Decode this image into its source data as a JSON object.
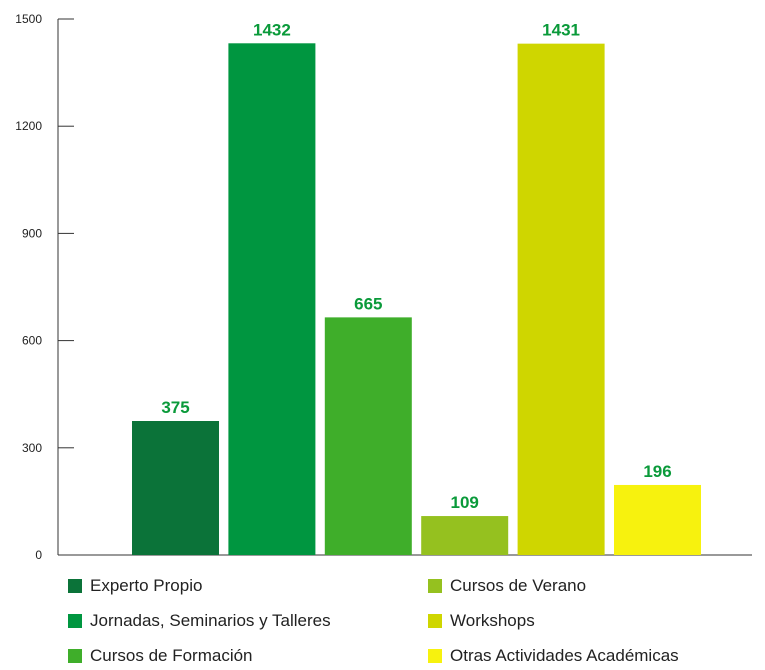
{
  "chart_data": {
    "type": "bar",
    "categories": [
      "Experto Propio",
      "Jornadas, Seminarios y Talleres",
      "Cursos de Formación",
      "Cursos de Verano",
      "Workshops",
      "Otras Actividades Académicas"
    ],
    "values": [
      375,
      1432,
      665,
      109,
      1431,
      196
    ],
    "colors": [
      "#0b7339",
      "#009640",
      "#3fae2a",
      "#95c11f",
      "#cfd600",
      "#f7f20e"
    ],
    "label_color": "#0a9a3a",
    "ylim": [
      0,
      1500
    ],
    "yticks": [
      "0",
      "300",
      "600",
      "900",
      "1200",
      "1500"
    ],
    "grid": false,
    "legend": "bottom",
    "title": "",
    "xlabel": "",
    "ylabel": ""
  }
}
